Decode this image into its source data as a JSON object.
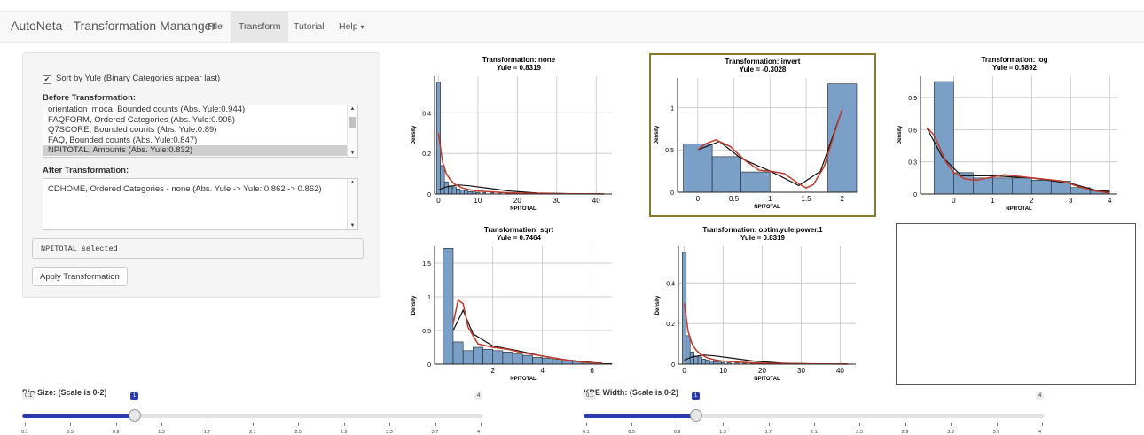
{
  "navbar": {
    "brand": "AutoNeta - Transformation Mananger",
    "items": [
      {
        "label": "File"
      },
      {
        "label": "Transform",
        "active": true
      },
      {
        "label": "Tutorial"
      },
      {
        "label": "Help",
        "caret": "▾"
      }
    ]
  },
  "sidebar": {
    "sort_checkbox": {
      "label": "Sort by Yule (Binary Categories appear last)",
      "checked": true
    },
    "before_label": "Before Transformation:",
    "before_options": [
      "orientation_moca, Bounded counts (Abs. Yule:0.944)",
      "FAQFORM, Ordered Categories (Abs. Yule:0.905)",
      "Q7SCORE, Bounded counts (Abs. Yule:0.89)",
      "FAQ, Bounded counts (Abs. Yule:0.847)",
      "NPITOTAL, Amounts (Abs. Yule:0.832)"
    ],
    "before_selected_index": 4,
    "after_label": "After Transformation:",
    "after_options": [
      "CDHOME, Ordered Categories - none (Abs. Yule -> Yule: 0.862 -> 0.862)"
    ],
    "status_text": "NPITOTAL selected",
    "apply_button": "Apply Transformation"
  },
  "chart_data": [
    {
      "type": "bar",
      "title": "Transformation: none",
      "subtitle": "Yule = 0.8319",
      "xlabel": "NPITOTAL",
      "ylabel": "Density",
      "xlim": [
        -1,
        44
      ],
      "ylim": [
        0,
        0.58
      ],
      "xticks": [
        0,
        10,
        20,
        30,
        40
      ],
      "yticks": [
        0,
        0.2,
        0.4
      ],
      "highlighted": false,
      "bins": [
        [
          -0.5,
          0.55
        ],
        [
          0.5,
          0.14
        ],
        [
          1.5,
          0.06
        ],
        [
          2.5,
          0.04
        ],
        [
          3.5,
          0.035
        ],
        [
          4.5,
          0.025
        ],
        [
          5.5,
          0.02
        ],
        [
          6.5,
          0.015
        ],
        [
          7.5,
          0.012
        ],
        [
          8.5,
          0.01
        ],
        [
          9.5,
          0.008
        ],
        [
          11,
          0.007
        ],
        [
          13,
          0.006
        ],
        [
          15,
          0.005
        ],
        [
          17,
          0.004
        ],
        [
          19,
          0.004
        ],
        [
          21,
          0.003
        ],
        [
          23,
          0.003
        ],
        [
          25,
          0.002
        ],
        [
          27,
          0.002
        ],
        [
          29,
          0.002
        ],
        [
          32,
          0.001
        ],
        [
          36,
          0.001
        ],
        [
          40,
          0.001
        ]
      ],
      "binw": 1,
      "kde": [
        [
          0,
          0.3
        ],
        [
          0.5,
          0.23
        ],
        [
          1,
          0.16
        ],
        [
          2,
          0.1
        ],
        [
          3,
          0.07
        ],
        [
          4,
          0.05
        ],
        [
          6,
          0.03
        ],
        [
          8,
          0.02
        ],
        [
          10,
          0.015
        ],
        [
          14,
          0.01
        ],
        [
          18,
          0.006
        ],
        [
          22,
          0.004
        ],
        [
          26,
          0.003
        ],
        [
          30,
          0.002
        ],
        [
          35,
          0.001
        ],
        [
          42,
          0.0005
        ]
      ],
      "norm": [
        [
          0,
          0.02
        ],
        [
          2,
          0.035
        ],
        [
          5,
          0.045
        ],
        [
          8,
          0.04
        ],
        [
          12,
          0.03
        ],
        [
          18,
          0.015
        ],
        [
          25,
          0.005
        ],
        [
          35,
          0.001
        ],
        [
          42,
          0
        ]
      ]
    },
    {
      "type": "bar",
      "title": "Transformation: invert",
      "subtitle": "Yule = -0.3028",
      "xlabel": "NPITOTAL",
      "ylabel": "Density",
      "xlim": [
        -0.28,
        2.2
      ],
      "ylim": [
        0,
        1.35
      ],
      "xticks": [
        0,
        0.5,
        1,
        1.5,
        2
      ],
      "yticks": [
        0,
        0.5,
        1
      ],
      "highlighted": true,
      "bins": [
        [
          -0.2,
          0.57
        ],
        [
          0.2,
          0.42
        ],
        [
          0.6,
          0.24
        ],
        [
          1.0,
          0
        ],
        [
          1.4,
          0
        ],
        [
          1.8,
          1.28
        ]
      ],
      "binw": 0.4,
      "kde": [
        [
          0,
          0.5
        ],
        [
          0.1,
          0.57
        ],
        [
          0.25,
          0.62
        ],
        [
          0.45,
          0.54
        ],
        [
          0.65,
          0.38
        ],
        [
          0.85,
          0.26
        ],
        [
          1.0,
          0.25
        ],
        [
          1.2,
          0.22
        ],
        [
          1.4,
          0.1
        ],
        [
          1.5,
          0.05
        ],
        [
          1.6,
          0.09
        ],
        [
          1.75,
          0.3
        ],
        [
          1.9,
          0.72
        ],
        [
          2,
          0.98
        ]
      ],
      "norm": [
        [
          0,
          0.5
        ],
        [
          0.3,
          0.6
        ],
        [
          0.6,
          0.4
        ],
        [
          1,
          0.25
        ],
        [
          1.4,
          0.08
        ],
        [
          1.7,
          0.25
        ],
        [
          2,
          0.98
        ]
      ]
    },
    {
      "type": "bar",
      "title": "Transformation: log",
      "subtitle": "Yule = 0.5892",
      "xlabel": "NPITOTAL",
      "ylabel": "Density",
      "xlim": [
        -0.85,
        4.2
      ],
      "ylim": [
        0,
        1.1
      ],
      "xticks": [
        0,
        1,
        2,
        3,
        4
      ],
      "yticks": [
        0,
        0.3,
        0.6,
        0.9
      ],
      "highlighted": false,
      "bins": [
        [
          -0.5,
          1.05
        ],
        [
          0,
          0.2
        ],
        [
          0.5,
          0.15
        ],
        [
          1,
          0.15
        ],
        [
          1.5,
          0.15
        ],
        [
          2,
          0.13
        ],
        [
          2.5,
          0.12
        ],
        [
          3,
          0.06
        ],
        [
          3.5,
          0.03
        ]
      ],
      "binw": 0.5,
      "kde": [
        [
          -0.69,
          0.62
        ],
        [
          -0.5,
          0.55
        ],
        [
          -0.2,
          0.3
        ],
        [
          0,
          0.2
        ],
        [
          0.3,
          0.14
        ],
        [
          0.6,
          0.13
        ],
        [
          1,
          0.16
        ],
        [
          1.3,
          0.18
        ],
        [
          1.8,
          0.16
        ],
        [
          2.3,
          0.14
        ],
        [
          2.8,
          0.12
        ],
        [
          3.2,
          0.07
        ],
        [
          3.6,
          0.03
        ],
        [
          4,
          0.01
        ]
      ],
      "norm": [
        [
          -0.69,
          0.62
        ],
        [
          -0.3,
          0.35
        ],
        [
          0.2,
          0.17
        ],
        [
          1,
          0.17
        ],
        [
          2,
          0.15
        ],
        [
          3,
          0.1
        ],
        [
          3.6,
          0.04
        ],
        [
          4,
          0.02
        ]
      ]
    },
    {
      "type": "bar",
      "title": "Transformation: sqrt",
      "subtitle": "Yule = 0.7464",
      "xlabel": "NPITOTAL",
      "ylabel": "Density",
      "xlim": [
        -0.35,
        6.8
      ],
      "ylim": [
        0,
        1.75
      ],
      "xticks": [
        2,
        4,
        6
      ],
      "yticks": [
        0,
        0.5,
        1,
        1.5
      ],
      "highlighted": false,
      "bins": [
        [
          0,
          1.72
        ],
        [
          0.4,
          0.33
        ],
        [
          0.8,
          0.2
        ],
        [
          1.2,
          0.25
        ],
        [
          1.6,
          0.22
        ],
        [
          2.0,
          0.2
        ],
        [
          2.4,
          0.18
        ],
        [
          2.8,
          0.15
        ],
        [
          3.2,
          0.13
        ],
        [
          3.6,
          0.1
        ],
        [
          4.0,
          0.09
        ],
        [
          4.4,
          0.07
        ],
        [
          4.8,
          0.05
        ],
        [
          5.2,
          0.04
        ],
        [
          5.6,
          0.03
        ],
        [
          6.0,
          0.02
        ],
        [
          6.4,
          0.01
        ]
      ],
      "binw": 0.4,
      "kde": [
        [
          0.4,
          0.6
        ],
        [
          0.6,
          0.95
        ],
        [
          0.8,
          0.9
        ],
        [
          1.0,
          0.55
        ],
        [
          1.4,
          0.3
        ],
        [
          2,
          0.25
        ],
        [
          2.6,
          0.22
        ],
        [
          3.2,
          0.17
        ],
        [
          4,
          0.12
        ],
        [
          4.8,
          0.07
        ],
        [
          5.6,
          0.03
        ],
        [
          6.4,
          0.01
        ]
      ],
      "norm": [
        [
          0.4,
          0.5
        ],
        [
          0.8,
          0.8
        ],
        [
          1.2,
          0.45
        ],
        [
          2,
          0.27
        ],
        [
          3,
          0.2
        ],
        [
          4,
          0.12
        ],
        [
          5,
          0.06
        ],
        [
          6.4,
          0.01
        ]
      ]
    },
    {
      "type": "bar",
      "title": "Transformation: optim.yule.power.1",
      "subtitle": "Yule = 0.8319",
      "xlabel": "NPITOTAL",
      "ylabel": "Density",
      "xlim": [
        -1.5,
        44
      ],
      "ylim": [
        0,
        0.58
      ],
      "xticks": [
        0,
        10,
        20,
        30,
        40
      ],
      "yticks": [
        0,
        0.2,
        0.4
      ],
      "highlighted": false,
      "bins": [
        [
          -0.5,
          0.55
        ],
        [
          0.5,
          0.14
        ],
        [
          1.5,
          0.06
        ],
        [
          2.5,
          0.04
        ],
        [
          3.5,
          0.035
        ],
        [
          4.5,
          0.025
        ],
        [
          5.5,
          0.02
        ],
        [
          6.5,
          0.015
        ],
        [
          7.5,
          0.012
        ],
        [
          8.5,
          0.01
        ],
        [
          9.5,
          0.008
        ],
        [
          11,
          0.007
        ],
        [
          13,
          0.006
        ],
        [
          15,
          0.005
        ],
        [
          17,
          0.004
        ],
        [
          19,
          0.004
        ],
        [
          21,
          0.003
        ],
        [
          23,
          0.003
        ],
        [
          25,
          0.002
        ],
        [
          27,
          0.002
        ],
        [
          29,
          0.002
        ],
        [
          32,
          0.001
        ],
        [
          36,
          0.001
        ],
        [
          40,
          0.001
        ]
      ],
      "binw": 1,
      "kde": [
        [
          0,
          0.3
        ],
        [
          0.5,
          0.23
        ],
        [
          1,
          0.16
        ],
        [
          2,
          0.1
        ],
        [
          3,
          0.07
        ],
        [
          4,
          0.05
        ],
        [
          6,
          0.03
        ],
        [
          8,
          0.02
        ],
        [
          10,
          0.015
        ],
        [
          14,
          0.01
        ],
        [
          18,
          0.006
        ],
        [
          22,
          0.004
        ],
        [
          26,
          0.003
        ],
        [
          30,
          0.002
        ],
        [
          35,
          0.001
        ],
        [
          42,
          0.0005
        ]
      ],
      "norm": [
        [
          0,
          0.02
        ],
        [
          2,
          0.035
        ],
        [
          5,
          0.045
        ],
        [
          8,
          0.04
        ],
        [
          12,
          0.03
        ],
        [
          18,
          0.015
        ],
        [
          25,
          0.005
        ],
        [
          35,
          0.001
        ],
        [
          42,
          0
        ]
      ]
    }
  ],
  "colors": {
    "bar_fill": "#7aa0c8",
    "bar_stroke": "#222222",
    "kde": "#c0392b",
    "norm": "#111111",
    "grid": "#bbbbbb",
    "slider_fill": "#2a3ab0"
  },
  "sliders": [
    {
      "label": "Bin Size: (Scale is 0-2)",
      "min_label": "0.1",
      "max_label": "4",
      "value": "1",
      "fraction": 0.244,
      "ticks": [
        "0.1",
        "0.5",
        "0.9",
        "1.3",
        "1.7",
        "2.1",
        "2.5",
        "2.9",
        "3.3",
        "3.7",
        "4"
      ]
    },
    {
      "label": "KDE Width: (Scale is 0-2)",
      "min_label": "0.1",
      "max_label": "4",
      "value": "1",
      "fraction": 0.244,
      "ticks": [
        "0.1",
        "0.5",
        "0.9",
        "1.3",
        "1.7",
        "2.1",
        "2.5",
        "2.9",
        "3.3",
        "3.7",
        "4"
      ]
    }
  ]
}
